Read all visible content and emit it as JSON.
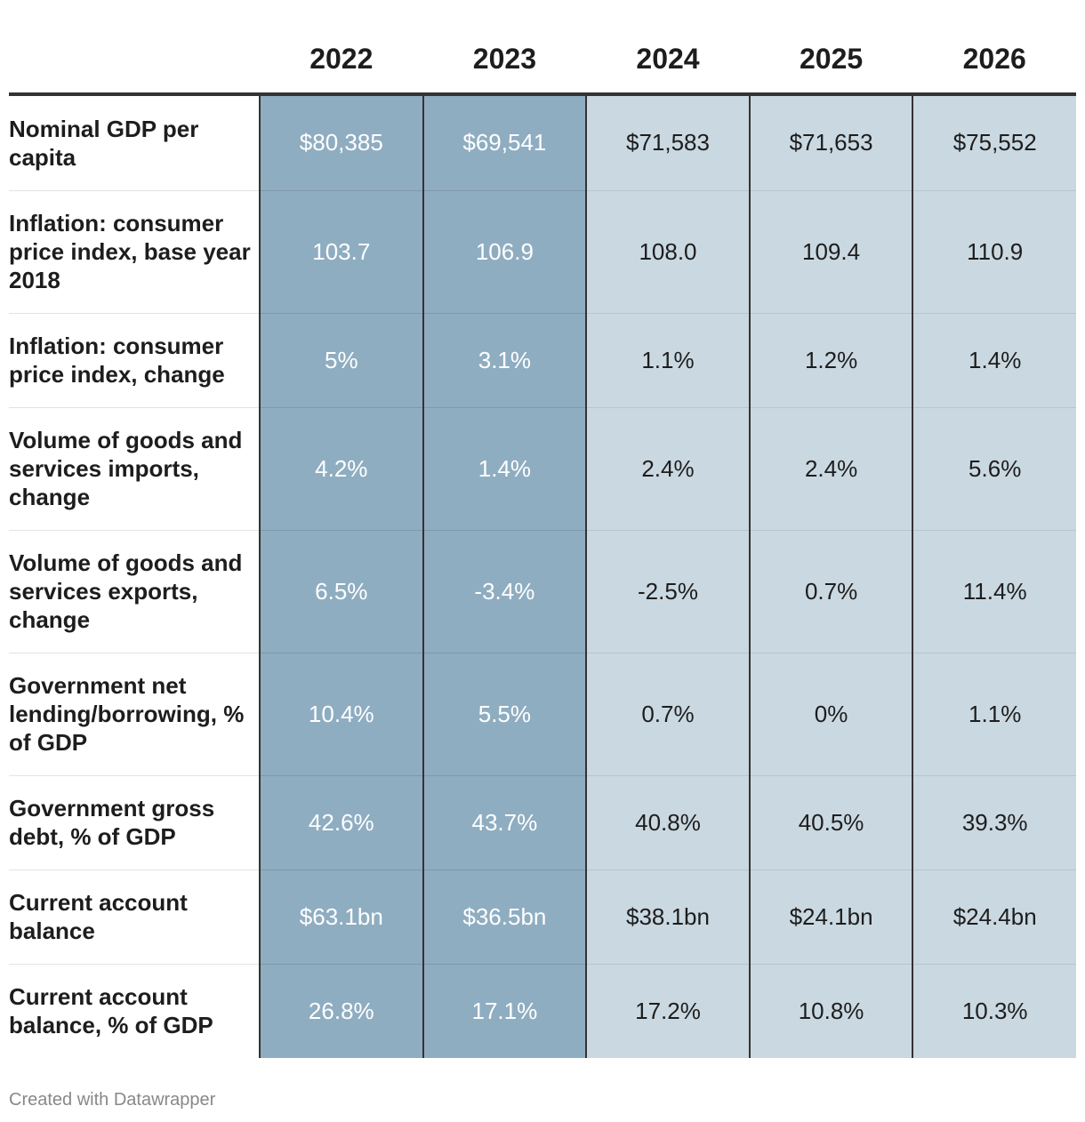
{
  "chart_data": {
    "type": "table",
    "columns": [
      "2022",
      "2023",
      "2024",
      "2025",
      "2026"
    ],
    "highlighted_columns": [
      "2022",
      "2023"
    ],
    "colors": {
      "highlight_fill": "#8fadc1",
      "default_fill": "#cad8e1",
      "highlight_text": "#ffffff",
      "default_text": "#1d1d1d"
    },
    "rows": [
      {
        "label": "Nominal GDP per capita",
        "values": [
          "$80,385",
          "$69,541",
          "$71,583",
          "$71,653",
          "$75,552"
        ]
      },
      {
        "label": "Inflation: consumer price index, base year 2018",
        "values": [
          "103.7",
          "106.9",
          "108.0",
          "109.4",
          "110.9"
        ]
      },
      {
        "label": "Inflation: consumer price index, change",
        "values": [
          "5%",
          "3.1%",
          "1.1%",
          "1.2%",
          "1.4%"
        ]
      },
      {
        "label": "Volume of goods and services imports, change",
        "values": [
          "4.2%",
          "1.4%",
          "2.4%",
          "2.4%",
          "5.6%"
        ]
      },
      {
        "label": "Volume of goods and services exports, change",
        "values": [
          "6.5%",
          "-3.4%",
          "-2.5%",
          "0.7%",
          "11.4%"
        ]
      },
      {
        "label": "Government net lending/borrowing, % of GDP",
        "values": [
          "10.4%",
          "5.5%",
          "0.7%",
          "0%",
          "1.1%"
        ]
      },
      {
        "label": "Government gross debt, % of GDP",
        "values": [
          "42.6%",
          "43.7%",
          "40.8%",
          "40.5%",
          "39.3%"
        ]
      },
      {
        "label": "Current account balance",
        "values": [
          "$63.1bn",
          "$36.5bn",
          "$38.1bn",
          "$24.1bn",
          "$24.4bn"
        ]
      },
      {
        "label": "Current account balance, % of GDP",
        "values": [
          "26.8%",
          "17.1%",
          "17.2%",
          "10.8%",
          "10.3%"
        ]
      }
    ]
  },
  "footer": {
    "credit": "Created with Datawrapper"
  }
}
